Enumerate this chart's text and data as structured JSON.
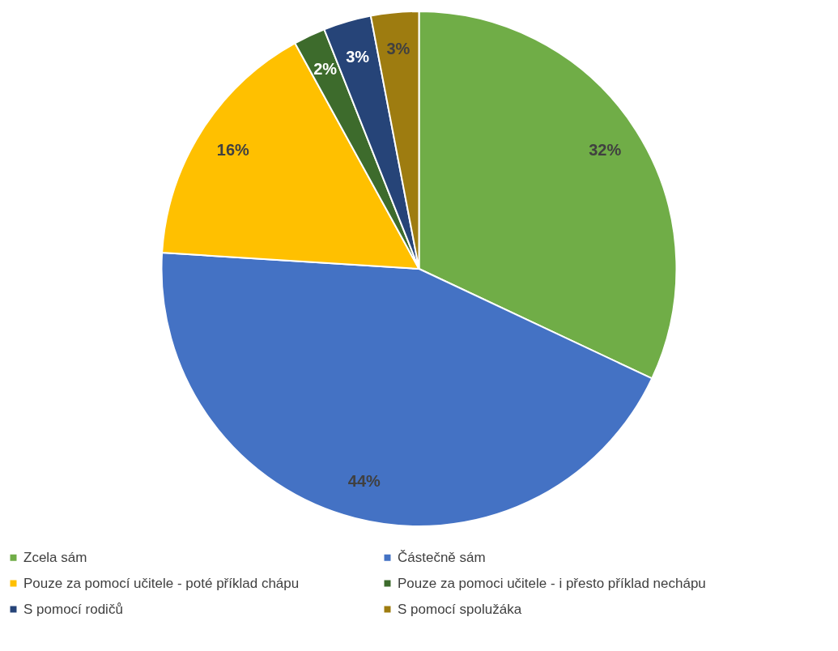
{
  "chart_data": {
    "type": "pie",
    "categories": [
      "Zcela sám",
      "Částečně sám",
      "Pouze za pomocí učitele - poté příklad chápu",
      "Pouze za pomoci učitele - i přesto příklad nechápu",
      "S pomocí rodičů",
      "S pomocí spolužáka"
    ],
    "values": [
      32,
      44,
      16,
      2,
      3,
      3
    ],
    "value_labels": [
      "32%",
      "44%",
      "16%",
      "2%",
      "3%",
      "3%"
    ],
    "colors": [
      "#70ad47",
      "#4472c4",
      "#ffc000",
      "#3d6b2c",
      "#264478",
      "#9e7c10"
    ],
    "legend": "bottom"
  }
}
